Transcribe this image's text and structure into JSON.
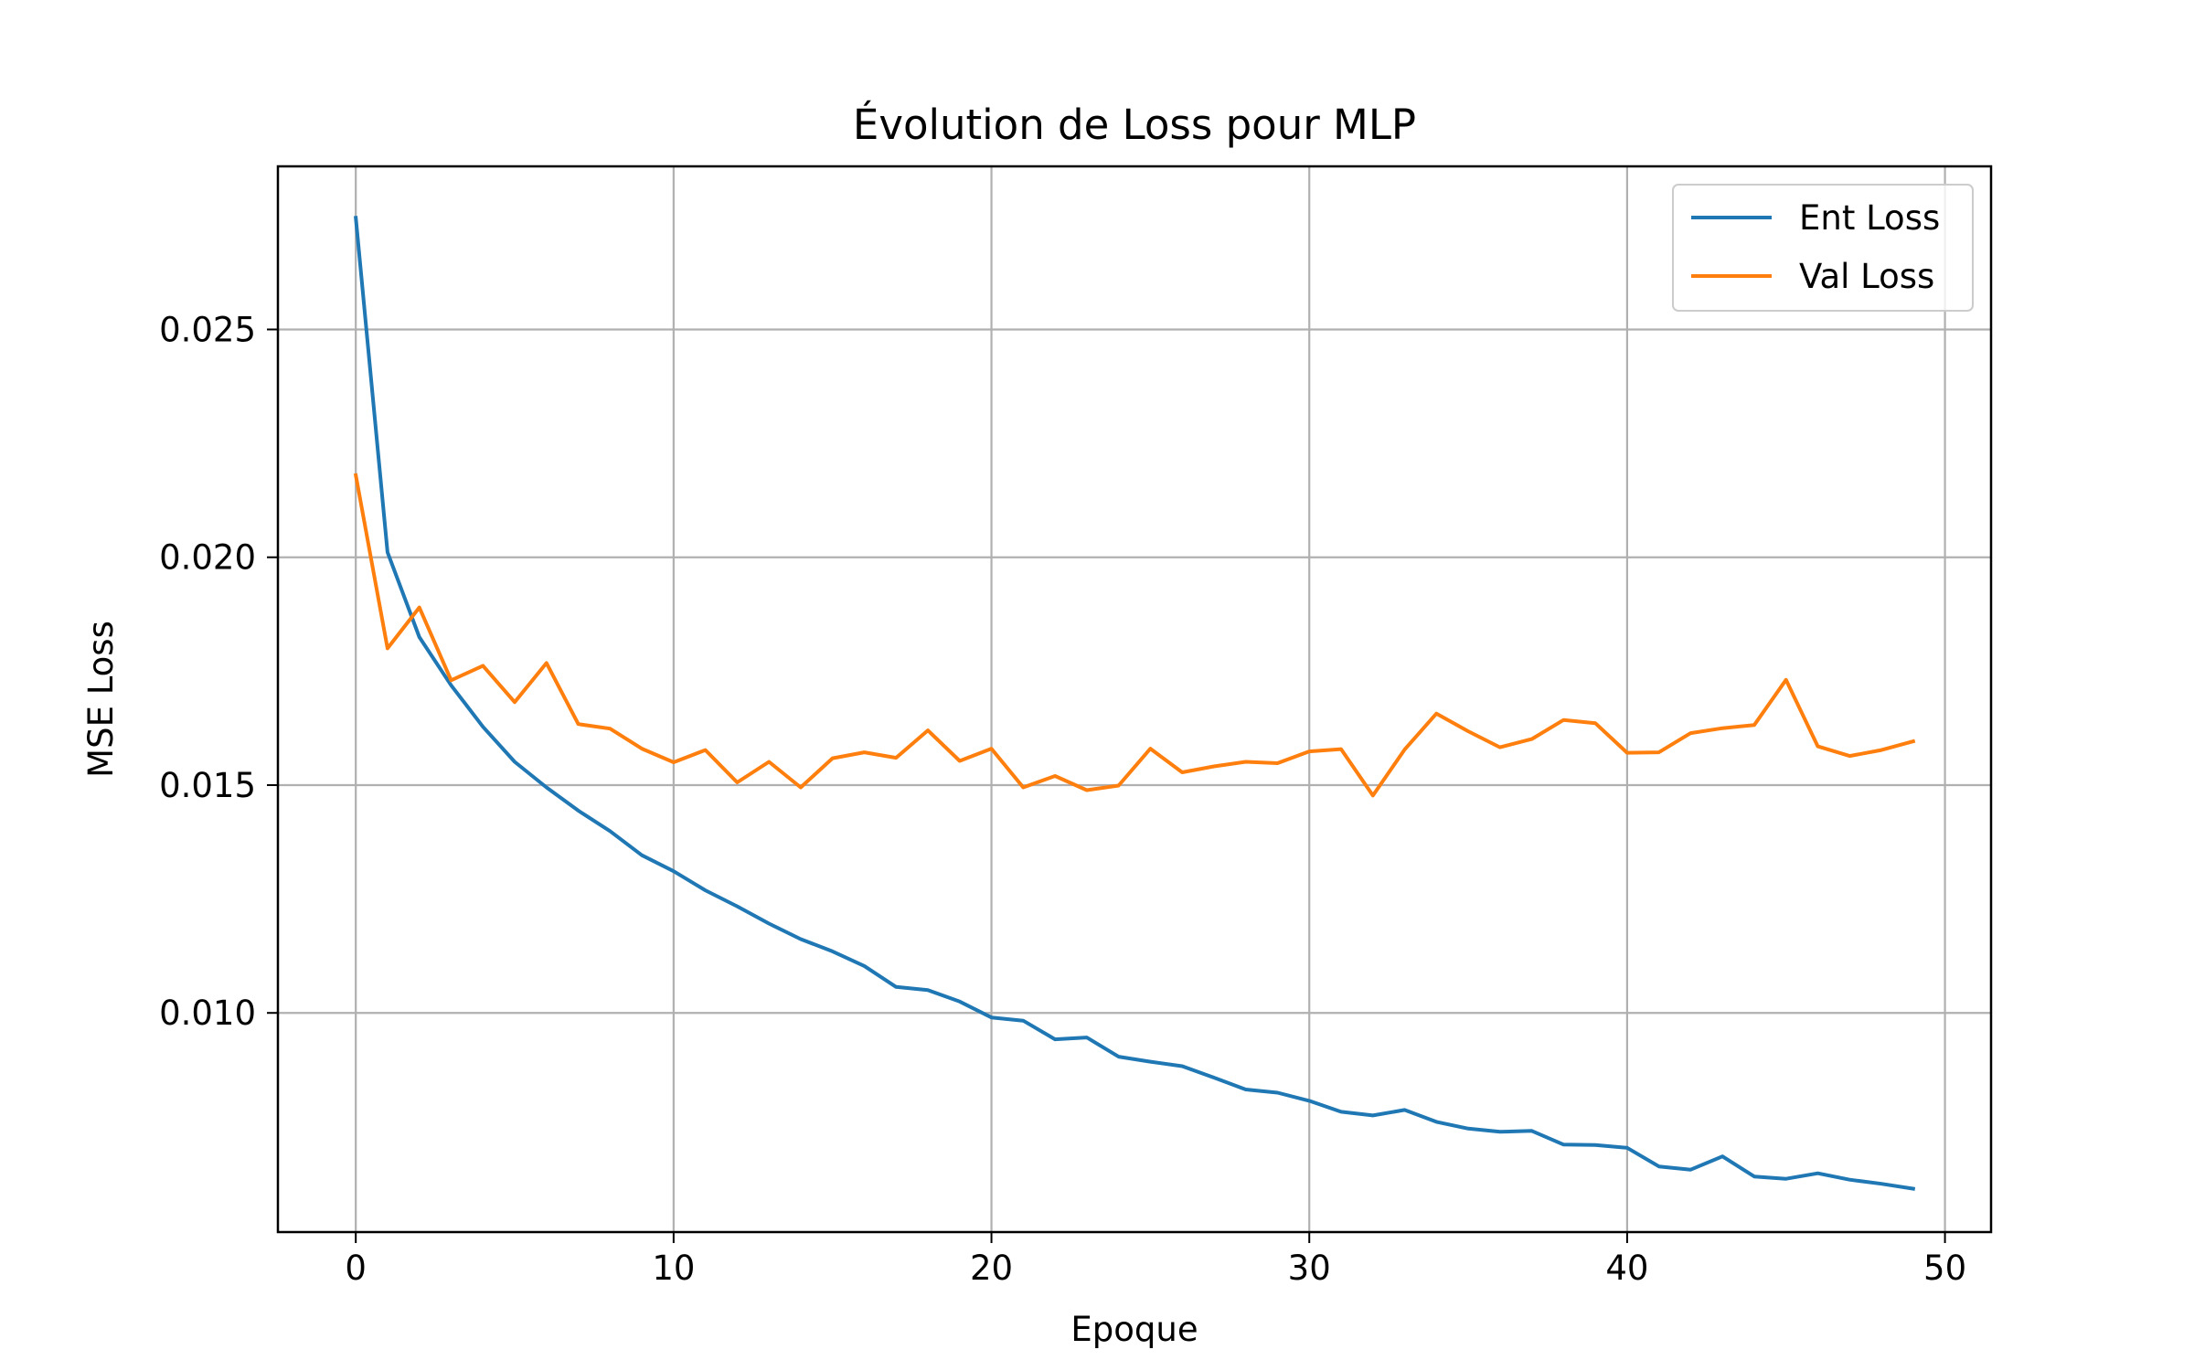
{
  "chart_data": {
    "type": "line",
    "title": "Évolution de Loss pour MLP",
    "xlabel": "Epoque",
    "ylabel": "MSE Loss",
    "xlim": [
      -2.45,
      51.45
    ],
    "ylim": [
      0.00519,
      0.02858
    ],
    "xticks": [
      0,
      10,
      20,
      30,
      40,
      50
    ],
    "xtick_labels": [
      "0",
      "10",
      "20",
      "30",
      "40",
      "50"
    ],
    "yticks": [
      0.01,
      0.015,
      0.02,
      0.025
    ],
    "ytick_labels": [
      "0.010",
      "0.015",
      "0.020",
      "0.025"
    ],
    "grid": true,
    "legend_position": "top-right",
    "x": [
      0,
      1,
      2,
      3,
      4,
      5,
      6,
      7,
      8,
      9,
      10,
      11,
      12,
      13,
      14,
      15,
      16,
      17,
      18,
      19,
      20,
      21,
      22,
      23,
      24,
      25,
      26,
      27,
      28,
      29,
      30,
      31,
      32,
      33,
      34,
      35,
      36,
      37,
      38,
      39,
      40,
      41,
      42,
      43,
      44,
      45,
      46,
      47,
      48,
      49
    ],
    "series": [
      {
        "name": "Ent Loss",
        "color": "#1f77b4",
        "values": [
          0.02745,
          0.02011,
          0.01825,
          0.01719,
          0.01628,
          0.01551,
          0.01495,
          0.01444,
          0.01399,
          0.01346,
          0.01311,
          0.01269,
          0.01234,
          0.01196,
          0.01162,
          0.01135,
          0.01103,
          0.01057,
          0.0105,
          0.01025,
          0.0099,
          0.00983,
          0.00942,
          0.00946,
          0.00904,
          0.00893,
          0.00883,
          0.00858,
          0.00832,
          0.00825,
          0.00807,
          0.00783,
          0.00775,
          0.00787,
          0.00761,
          0.00746,
          0.00739,
          0.00741,
          0.00711,
          0.0071,
          0.00704,
          0.00663,
          0.00656,
          0.00685,
          0.00641,
          0.00636,
          0.00648,
          0.00634,
          0.00625,
          0.00614
        ]
      },
      {
        "name": "Val Loss",
        "color": "#ff7f0e",
        "values": [
          0.0218,
          0.018,
          0.0189,
          0.0173,
          0.01762,
          0.01682,
          0.01768,
          0.01634,
          0.01624,
          0.0158,
          0.0155,
          0.01577,
          0.01506,
          0.01551,
          0.01495,
          0.01559,
          0.01572,
          0.0156,
          0.0162,
          0.01553,
          0.0158,
          0.01495,
          0.0152,
          0.01489,
          0.01499,
          0.0158,
          0.01528,
          0.01541,
          0.01551,
          0.01548,
          0.01574,
          0.01579,
          0.01477,
          0.01578,
          0.01657,
          0.01618,
          0.01583,
          0.01601,
          0.01643,
          0.01636,
          0.01571,
          0.01572,
          0.01614,
          0.01625,
          0.01632,
          0.01731,
          0.01585,
          0.01564,
          0.01577,
          0.01596
        ]
      }
    ]
  }
}
